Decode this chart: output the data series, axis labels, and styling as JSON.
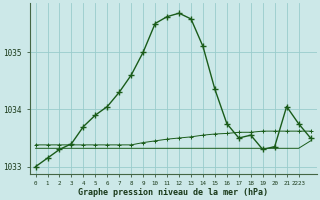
{
  "xlabel": "Graphe pression niveau de la mer (hPa)",
  "background_color": "#cce8e8",
  "grid_color": "#99cccc",
  "line_color": "#1a5c1a",
  "hours": [
    0,
    1,
    2,
    3,
    4,
    5,
    6,
    7,
    8,
    9,
    10,
    11,
    12,
    13,
    14,
    15,
    16,
    17,
    18,
    19,
    20,
    21,
    22,
    23
  ],
  "main_values": [
    1033.0,
    1033.15,
    1033.3,
    1033.4,
    1033.7,
    1033.9,
    1034.05,
    1034.3,
    1034.6,
    1035.0,
    1035.5,
    1035.62,
    1035.68,
    1035.58,
    1035.1,
    1034.35,
    1033.75,
    1033.5,
    1033.55,
    1033.3,
    1033.35,
    1034.05,
    1033.75,
    1033.5
  ],
  "line2_values": [
    1033.38,
    1033.38,
    1033.38,
    1033.38,
    1033.38,
    1033.38,
    1033.38,
    1033.38,
    1033.38,
    1033.42,
    1033.45,
    1033.48,
    1033.5,
    1033.52,
    1033.55,
    1033.57,
    1033.58,
    1033.6,
    1033.6,
    1033.62,
    1033.62,
    1033.62,
    1033.62,
    1033.62
  ],
  "line3_values": [
    1033.32,
    1033.32,
    1033.32,
    1033.32,
    1033.32,
    1033.32,
    1033.32,
    1033.32,
    1033.32,
    1033.32,
    1033.32,
    1033.32,
    1033.32,
    1033.32,
    1033.32,
    1033.32,
    1033.32,
    1033.32,
    1033.32,
    1033.32,
    1033.32,
    1033.32,
    1033.32,
    1033.45
  ],
  "ylim": [
    1032.88,
    1035.85
  ],
  "yticks": [
    1033,
    1034,
    1035
  ],
  "figsize": [
    3.2,
    2.0
  ],
  "dpi": 100
}
